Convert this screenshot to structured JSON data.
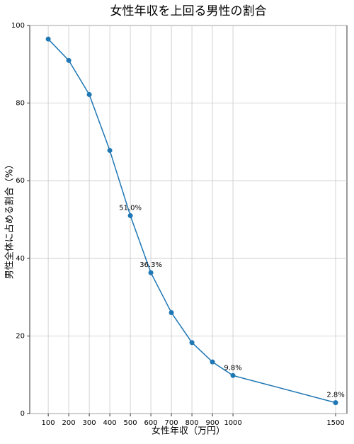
{
  "chart_data": {
    "type": "line",
    "title": "女性年収を上回る男性の割合",
    "x_label": "女性年収（万円）",
    "y_label": "男性全体に占める割合（%）",
    "x": [
      100,
      200,
      300,
      400,
      500,
      600,
      700,
      800,
      900,
      1000,
      1500
    ],
    "series": [
      {
        "color": "#1f77b4",
        "values": [
          96.5,
          91.0,
          82.2,
          67.8,
          51.0,
          36.3,
          26.0,
          18.3,
          13.3,
          9.8,
          2.8
        ],
        "value_labels": [
          null,
          null,
          null,
          null,
          "51.0%",
          "36.3%",
          null,
          null,
          null,
          "9.8%",
          "2.8%"
        ]
      }
    ],
    "xlim": [
      10,
      1555
    ],
    "ylim": [
      0,
      100
    ],
    "xticks": [
      100,
      200,
      300,
      400,
      500,
      600,
      700,
      800,
      900,
      1000,
      1500
    ],
    "yticks": [
      0,
      20,
      40,
      60,
      80,
      100
    ],
    "grid": true
  }
}
